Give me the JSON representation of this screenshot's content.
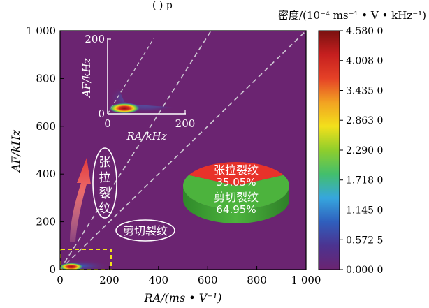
{
  "caption_fragment": "(   )                   p",
  "colors": {
    "background": "#6b2471",
    "dashed_diagonal": "#cfc9d4",
    "highlight_box": "#f2e21a",
    "pie_tension": "#e8322a",
    "pie_shear": "#4cb33d"
  },
  "colorbar": {
    "title": "密度/(10⁻⁴ ms⁻¹ • V • kHz⁻¹)",
    "ticks": [
      "4.580 0",
      "4.008 0",
      "3.435 0",
      "2.863 0",
      "2.290 0",
      "1.718 0",
      "1.145 0",
      "0.572 5",
      "0.000 0"
    ],
    "tick_values": [
      4.58,
      4.008,
      3.435,
      2.863,
      2.29,
      1.718,
      1.145,
      0.5725,
      0.0
    ],
    "stops": [
      "#6b2471",
      "#4c3390",
      "#2f5fbd",
      "#36a6de",
      "#43bf6c",
      "#8fce2c",
      "#f3e01b",
      "#f2a222",
      "#e54227",
      "#c61f1f",
      "#7a1110"
    ]
  },
  "chart_data": [
    {
      "type": "heatmap",
      "xlabel": "RA/(ms • V⁻¹)",
      "ylabel": "AF/kHz",
      "xlim": [
        0,
        1000
      ],
      "ylim": [
        0,
        1000
      ],
      "xticks": [
        "0",
        "200",
        "400",
        "600",
        "800",
        "1 000"
      ],
      "xtick_values": [
        0,
        200,
        400,
        600,
        800,
        1000
      ],
      "yticks": [
        "0",
        "200",
        "400",
        "600",
        "800",
        "1 000"
      ],
      "ytick_values": [
        0,
        200,
        400,
        600,
        800,
        1000
      ],
      "peak": {
        "x": 45,
        "y": 12
      },
      "diagonal_lines": [
        {
          "slope": 1.0
        },
        {
          "slope": 1.6
        }
      ],
      "highlight_region": {
        "x": [
          0,
          200
        ],
        "y": [
          0,
          85
        ]
      },
      "annotations": {
        "tension": "张拉裂纹",
        "shear": "剪切裂纹"
      }
    },
    {
      "type": "heatmap",
      "role": "inset",
      "xlabel": "RA/kHz",
      "ylabel": "AF/kHz",
      "xlim": [
        0,
        200
      ],
      "ylim": [
        0,
        200
      ],
      "xticks": [
        "0",
        "200"
      ],
      "xtick_values": [
        0,
        200
      ],
      "yticks": [
        "0",
        "200"
      ],
      "ytick_values": [
        0,
        200
      ],
      "peak": {
        "x": 45,
        "y": 12
      },
      "diagonal_lines": [
        {
          "slope": 1.6
        }
      ]
    },
    {
      "type": "pie",
      "categories": [
        "张拉裂纹",
        "剪切裂纹"
      ],
      "values": [
        35.05,
        64.95
      ],
      "labels": [
        "35.05%",
        "64.95%"
      ]
    }
  ]
}
